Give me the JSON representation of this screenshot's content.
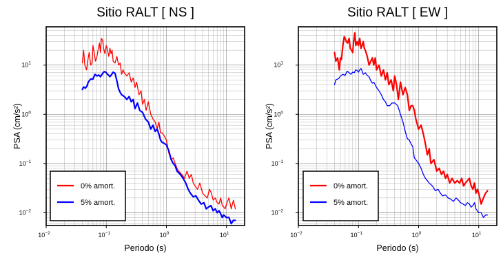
{
  "chart_data": [
    {
      "type": "line",
      "title": "Sitio RALT [ NS ]",
      "xlabel": "Periodo (s)",
      "ylabel": "PSA (cm/s²)",
      "xscale": "log",
      "yscale": "log",
      "xlim": [
        0.01,
        20
      ],
      "ylim": [
        0.0055,
        60
      ],
      "grid": true,
      "legend_position": "bottom-left",
      "x_ticks": [
        {
          "base": "10",
          "exp": "−2"
        },
        {
          "base": "10",
          "exp": "−1"
        },
        {
          "base": "10",
          "exp": "0"
        },
        {
          "base": "10",
          "exp": "1"
        }
      ],
      "y_ticks": [
        {
          "base": "10",
          "exp": "−2"
        },
        {
          "base": "10",
          "exp": "−1"
        },
        {
          "base": "10",
          "exp": "0"
        },
        {
          "base": "10",
          "exp": "1"
        }
      ],
      "series": [
        {
          "name": "0% amort.",
          "color": "#ff0000",
          "width": 1.3,
          "x": [
            0.04,
            0.042,
            0.044,
            0.047,
            0.05,
            0.052,
            0.055,
            0.058,
            0.06,
            0.063,
            0.066,
            0.07,
            0.073,
            0.077,
            0.08,
            0.083,
            0.087,
            0.09,
            0.095,
            0.1,
            0.105,
            0.11,
            0.115,
            0.12,
            0.125,
            0.13,
            0.14,
            0.15,
            0.16,
            0.17,
            0.18,
            0.19,
            0.2,
            0.22,
            0.24,
            0.26,
            0.28,
            0.3,
            0.32,
            0.35,
            0.38,
            0.4,
            0.43,
            0.46,
            0.5,
            0.55,
            0.6,
            0.65,
            0.7,
            0.75,
            0.8,
            0.85,
            0.9,
            1.0,
            1.1,
            1.2,
            1.3,
            1.4,
            1.5,
            1.6,
            1.8,
            2.0,
            2.2,
            2.4,
            2.6,
            2.8,
            3.0,
            3.3,
            3.6,
            4.0,
            4.4,
            4.8,
            5.2,
            5.6,
            6.0,
            6.5,
            7.0,
            7.5,
            8.0,
            8.5,
            9.0,
            9.5,
            10.0,
            11.0,
            12.0,
            13.0,
            14.0
          ],
          "y": [
            11,
            20,
            10,
            8,
            14,
            18,
            10,
            11,
            25,
            18,
            12,
            15,
            20,
            28,
            18,
            35,
            32,
            22,
            17,
            25,
            20,
            15,
            22,
            17,
            20,
            12,
            11,
            15,
            10,
            11,
            6.5,
            8,
            7,
            6,
            7,
            4.5,
            5.5,
            3.5,
            4.5,
            2.5,
            3,
            1.6,
            2,
            1.2,
            1.8,
            1.0,
            0.8,
            0.7,
            0.5,
            0.7,
            0.42,
            0.42,
            0.38,
            0.3,
            0.16,
            0.12,
            0.13,
            0.1,
            0.08,
            0.07,
            0.06,
            0.05,
            0.07,
            0.05,
            0.06,
            0.04,
            0.035,
            0.03,
            0.04,
            0.025,
            0.022,
            0.02,
            0.03,
            0.025,
            0.018,
            0.02,
            0.016,
            0.015,
            0.02,
            0.014,
            0.013,
            0.012,
            0.015,
            0.02,
            0.012,
            0.018,
            0.012
          ]
        },
        {
          "name": "5% amort.",
          "color": "#0000ff",
          "width": 2.2,
          "x": [
            0.04,
            0.042,
            0.045,
            0.048,
            0.05,
            0.055,
            0.06,
            0.065,
            0.07,
            0.075,
            0.08,
            0.085,
            0.09,
            0.095,
            0.1,
            0.105,
            0.11,
            0.115,
            0.12,
            0.13,
            0.14,
            0.15,
            0.16,
            0.17,
            0.18,
            0.2,
            0.22,
            0.24,
            0.26,
            0.28,
            0.3,
            0.33,
            0.36,
            0.4,
            0.45,
            0.5,
            0.55,
            0.6,
            0.65,
            0.7,
            0.75,
            0.8,
            0.85,
            0.9,
            1.0,
            1.1,
            1.2,
            1.3,
            1.4,
            1.5,
            1.7,
            1.9,
            2.1,
            2.3,
            2.5,
            2.8,
            3.1,
            3.4,
            3.8,
            4.2,
            4.6,
            5.0,
            5.5,
            6.0,
            6.5,
            7.0,
            7.5,
            8.0,
            8.5,
            9.0,
            10.0,
            11.0,
            12.0,
            13.0,
            14.0
          ],
          "y": [
            3.2,
            3.6,
            3.4,
            3.8,
            4.5,
            5.2,
            5.2,
            6.5,
            6.0,
            6.3,
            5.8,
            6.5,
            7.2,
            7.4,
            7.0,
            6.5,
            6.2,
            5.8,
            6.2,
            7.2,
            6.8,
            4.8,
            3.3,
            2.8,
            2.5,
            2.3,
            2.0,
            2.3,
            1.8,
            2.0,
            1.3,
            1.7,
            1.2,
            1.1,
            0.8,
            0.7,
            0.5,
            0.6,
            0.45,
            0.5,
            0.4,
            0.3,
            0.27,
            0.26,
            0.24,
            0.18,
            0.12,
            0.1,
            0.09,
            0.07,
            0.06,
            0.05,
            0.04,
            0.03,
            0.025,
            0.021,
            0.022,
            0.018,
            0.015,
            0.016,
            0.012,
            0.013,
            0.014,
            0.011,
            0.012,
            0.01,
            0.011,
            0.0095,
            0.008,
            0.009,
            0.008,
            0.008,
            0.006,
            0.007,
            0.007
          ]
        }
      ]
    },
    {
      "type": "line",
      "title": "Sitio RALT [ EW ]",
      "xlabel": "Periodo (s)",
      "ylabel": "PSA (cm/s²)",
      "xscale": "log",
      "yscale": "log",
      "xlim": [
        0.01,
        20
      ],
      "ylim": [
        0.0055,
        60
      ],
      "grid": true,
      "legend_position": "bottom-left",
      "x_ticks": [
        {
          "base": "10",
          "exp": "−2"
        },
        {
          "base": "10",
          "exp": "−1"
        },
        {
          "base": "10",
          "exp": "0"
        },
        {
          "base": "10",
          "exp": "1"
        }
      ],
      "y_ticks": [
        {
          "base": "10",
          "exp": "−2"
        },
        {
          "base": "10",
          "exp": "−1"
        },
        {
          "base": "10",
          "exp": "0"
        },
        {
          "base": "10",
          "exp": "1"
        }
      ],
      "series": [
        {
          "name": "0% amort.",
          "color": "#ff0000",
          "width": 2.2,
          "x": [
            0.04,
            0.042,
            0.045,
            0.048,
            0.05,
            0.052,
            0.055,
            0.058,
            0.06,
            0.063,
            0.066,
            0.07,
            0.073,
            0.077,
            0.08,
            0.083,
            0.087,
            0.09,
            0.095,
            0.1,
            0.105,
            0.11,
            0.115,
            0.12,
            0.125,
            0.13,
            0.14,
            0.15,
            0.16,
            0.17,
            0.18,
            0.19,
            0.2,
            0.22,
            0.24,
            0.26,
            0.28,
            0.3,
            0.32,
            0.35,
            0.38,
            0.4,
            0.43,
            0.46,
            0.5,
            0.55,
            0.6,
            0.65,
            0.7,
            0.75,
            0.8,
            0.85,
            0.9,
            1.0,
            1.1,
            1.2,
            1.3,
            1.4,
            1.5,
            1.6,
            1.8,
            2.0,
            2.2,
            2.4,
            2.6,
            2.8,
            3.0,
            3.3,
            3.6,
            4.0,
            4.4,
            4.8,
            5.2,
            5.6,
            6.0,
            6.5,
            7.0,
            7.5,
            8.0,
            8.5,
            9.0,
            9.5,
            10.0,
            11.0,
            12.0,
            13.0,
            14.0
          ],
          "y": [
            18,
            12,
            14,
            8,
            14,
            13,
            25,
            38,
            35,
            30,
            28,
            35,
            22,
            20,
            18,
            30,
            45,
            25,
            30,
            25,
            35,
            22,
            25,
            30,
            22,
            20,
            15,
            10,
            12,
            14,
            10,
            14,
            8,
            10,
            6,
            8,
            5,
            7,
            4,
            5,
            3,
            6,
            4,
            2,
            4.5,
            2.5,
            3.5,
            2.5,
            1.2,
            1.5,
            1.5,
            1.2,
            0.8,
            0.5,
            0.6,
            0.4,
            0.25,
            0.15,
            0.2,
            0.1,
            0.12,
            0.07,
            0.08,
            0.06,
            0.07,
            0.05,
            0.06,
            0.04,
            0.05,
            0.04,
            0.045,
            0.04,
            0.05,
            0.035,
            0.04,
            0.045,
            0.05,
            0.035,
            0.03,
            0.04,
            0.025,
            0.03,
            0.025,
            0.015,
            0.02,
            0.025,
            0.028
          ]
        },
        {
          "name": "5% amort.",
          "color": "#0000ff",
          "width": 1.3,
          "x": [
            0.04,
            0.042,
            0.045,
            0.048,
            0.05,
            0.055,
            0.06,
            0.065,
            0.07,
            0.075,
            0.08,
            0.085,
            0.09,
            0.095,
            0.1,
            0.105,
            0.11,
            0.115,
            0.12,
            0.13,
            0.14,
            0.15,
            0.16,
            0.17,
            0.18,
            0.2,
            0.22,
            0.24,
            0.26,
            0.28,
            0.3,
            0.33,
            0.36,
            0.4,
            0.45,
            0.5,
            0.55,
            0.6,
            0.65,
            0.7,
            0.75,
            0.8,
            0.85,
            0.9,
            1.0,
            1.1,
            1.2,
            1.3,
            1.4,
            1.5,
            1.7,
            1.9,
            2.1,
            2.3,
            2.5,
            2.8,
            3.1,
            3.4,
            3.8,
            4.2,
            4.6,
            5.0,
            5.5,
            6.0,
            6.5,
            7.0,
            7.5,
            8.0,
            8.5,
            9.0,
            10.0,
            11.0,
            12.0,
            13.0,
            14.0
          ],
          "y": [
            4.0,
            5.0,
            5.2,
            5.5,
            6.0,
            6.5,
            6.2,
            7.5,
            7.0,
            6.5,
            7.2,
            7.0,
            8.0,
            7.8,
            7.2,
            8.0,
            8.5,
            7.6,
            6.5,
            7.0,
            6.2,
            5.8,
            4.8,
            4.3,
            4.5,
            3.5,
            3.0,
            2.5,
            2.0,
            1.8,
            1.5,
            1.5,
            1.7,
            1.7,
            1.5,
            1.0,
            0.7,
            0.45,
            0.32,
            0.3,
            0.25,
            0.22,
            0.13,
            0.12,
            0.1,
            0.08,
            0.06,
            0.05,
            0.045,
            0.04,
            0.035,
            0.028,
            0.03,
            0.025,
            0.022,
            0.023,
            0.02,
            0.019,
            0.017,
            0.02,
            0.018,
            0.016,
            0.015,
            0.014,
            0.016,
            0.015,
            0.013,
            0.014,
            0.016,
            0.012,
            0.01,
            0.01,
            0.008,
            0.009,
            0.009
          ]
        }
      ]
    }
  ]
}
